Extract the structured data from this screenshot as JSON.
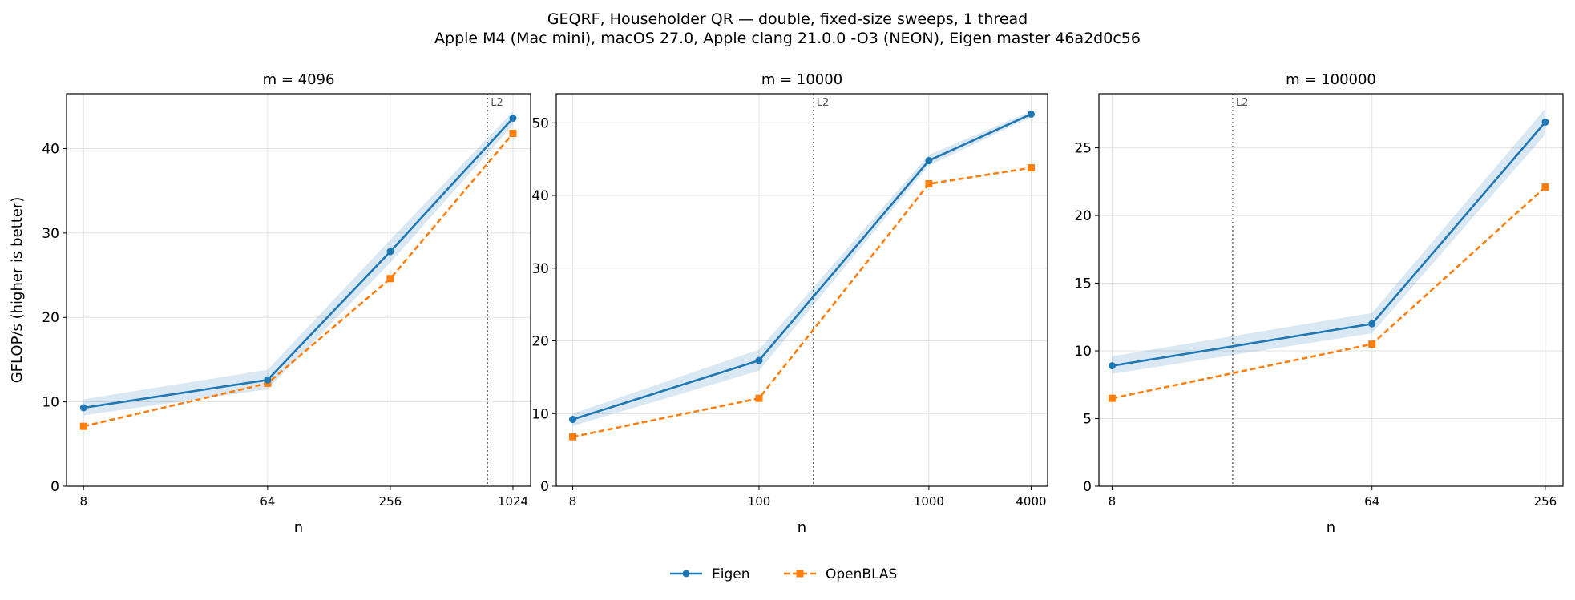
{
  "figure": {
    "title_line1": "GEQRF, Householder QR — double, fixed-size sweeps, 1 thread",
    "title_line2": "Apple M4 (Mac mini), macOS 27.0, Apple clang 21.0.0 -O3 (NEON), Eigen master 46a2d0c56",
    "ylabel": "GFLOP/s (higher is better)",
    "legend": [
      {
        "name": "Eigen",
        "color": "#1f77b4",
        "marker": "circle",
        "style": "solid"
      },
      {
        "name": "OpenBLAS",
        "color": "#ff7f0e",
        "marker": "square",
        "style": "dashed"
      }
    ],
    "legend_placement": "bottom-center"
  },
  "chart_data": [
    {
      "type": "line",
      "title": "m = 4096",
      "xlabel": "n",
      "ylabel": "GFLOP/s (higher is better)",
      "xscale": "log",
      "x_ticks": [
        8,
        64,
        256,
        1024
      ],
      "x_tick_labels": [
        "8",
        "64",
        "256",
        "1024"
      ],
      "xlim": [
        6.6,
        1250
      ],
      "ylim": [
        0,
        46.5
      ],
      "y_ticks": [
        0,
        10,
        20,
        30,
        40
      ],
      "grid": true,
      "l2_marker": {
        "x": 768,
        "label": "L2"
      },
      "x": [
        8,
        64,
        256,
        1024
      ],
      "series": [
        {
          "name": "Eigen",
          "values": [
            9.3,
            12.6,
            27.8,
            43.6
          ],
          "band_low": [
            8.4,
            11.5,
            26.5,
            42.8
          ],
          "band_high": [
            10.3,
            13.8,
            29.2,
            44.4
          ]
        },
        {
          "name": "OpenBLAS",
          "values": [
            7.1,
            12.2,
            24.6,
            41.8
          ]
        }
      ]
    },
    {
      "type": "line",
      "title": "m = 10000",
      "xlabel": "n",
      "xscale": "log",
      "x_ticks": [
        8,
        100,
        1000,
        4000
      ],
      "x_tick_labels": [
        "8",
        "100",
        "1000",
        "4000"
      ],
      "xlim": [
        6.4,
        5000
      ],
      "ylim": [
        0,
        54
      ],
      "y_ticks": [
        0,
        10,
        20,
        30,
        40,
        50
      ],
      "grid": true,
      "l2_marker": {
        "x": 209,
        "label": "L2"
      },
      "x": [
        8,
        100,
        1000,
        4000
      ],
      "series": [
        {
          "name": "Eigen",
          "values": [
            9.2,
            17.3,
            44.8,
            51.2
          ],
          "band_low": [
            8.3,
            15.9,
            44.1,
            50.8
          ],
          "band_high": [
            10.0,
            18.8,
            45.6,
            51.6
          ]
        },
        {
          "name": "OpenBLAS",
          "values": [
            6.8,
            12.1,
            41.6,
            43.8
          ]
        }
      ]
    },
    {
      "type": "line",
      "title": "m = 100000",
      "xlabel": "n",
      "xscale": "log",
      "x_ticks": [
        8,
        64,
        256
      ],
      "x_tick_labels": [
        "8",
        "64",
        "256"
      ],
      "xlim": [
        7.2,
        295
      ],
      "ylim": [
        0,
        29
      ],
      "y_ticks": [
        0,
        5,
        10,
        15,
        20,
        25
      ],
      "grid": true,
      "l2_marker": {
        "x": 21,
        "label": "L2"
      },
      "x": [
        8,
        64,
        256
      ],
      "series": [
        {
          "name": "Eigen",
          "values": [
            8.9,
            12.0,
            26.9
          ],
          "band_low": [
            8.3,
            11.3,
            26.0
          ],
          "band_high": [
            9.6,
            12.8,
            27.9
          ]
        },
        {
          "name": "OpenBLAS",
          "values": [
            6.5,
            10.5,
            22.1
          ]
        }
      ]
    }
  ]
}
